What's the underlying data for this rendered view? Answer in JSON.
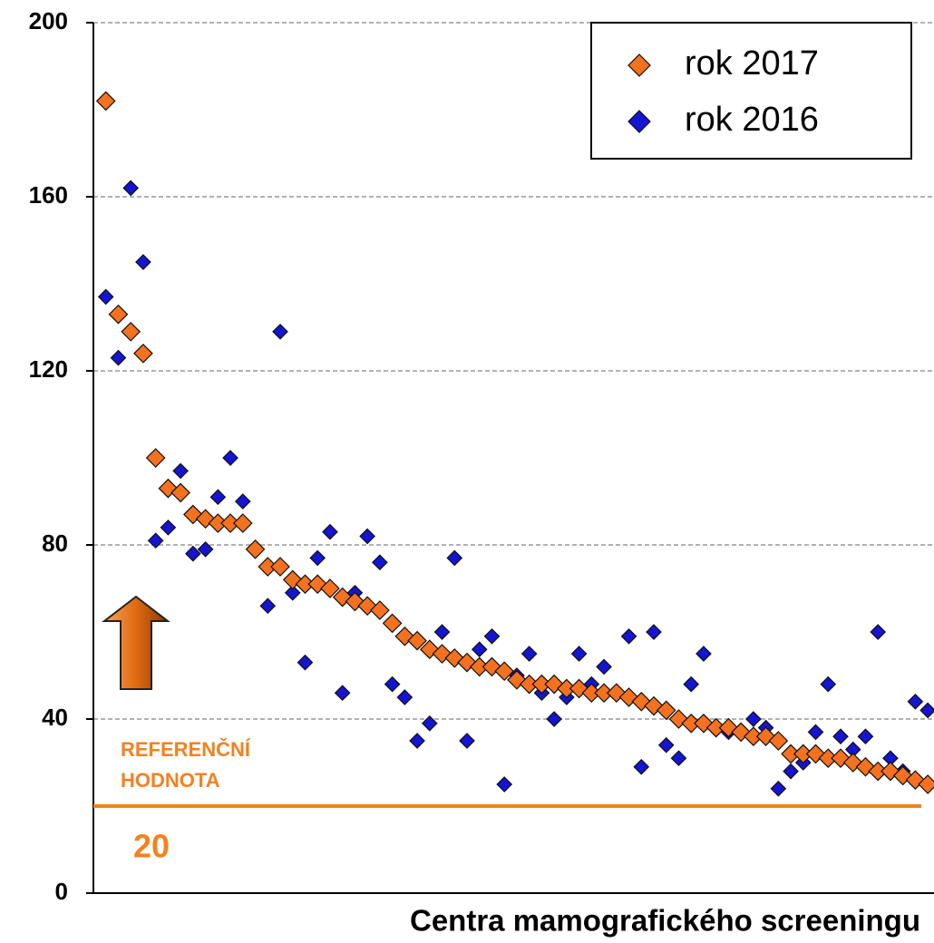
{
  "chart_data": {
    "type": "scatter",
    "xlabel": "Centra mamografického screeningu",
    "x": [
      1,
      2,
      3,
      4,
      5,
      6,
      7,
      8,
      9,
      10,
      11,
      12,
      13,
      14,
      15,
      16,
      17,
      18,
      19,
      20,
      21,
      22,
      23,
      24,
      25,
      26,
      27,
      28,
      29,
      30,
      31,
      32,
      33,
      34,
      35,
      36,
      37,
      38,
      39,
      40,
      41,
      42,
      43,
      44,
      45,
      46,
      47,
      48,
      49,
      50,
      51,
      52,
      53,
      54,
      55,
      56,
      57,
      58,
      59,
      60,
      61,
      62,
      63,
      64,
      65,
      66,
      67
    ],
    "xlim": [
      0,
      67.5
    ],
    "ylim": [
      0,
      200
    ],
    "yticks": [
      0,
      40,
      80,
      120,
      160,
      200
    ],
    "grid": true,
    "legend": "upper right",
    "series": [
      {
        "name": "rok 2017",
        "color": "#f4711f",
        "values": [
          182,
          133,
          129,
          124,
          100,
          93,
          92,
          87,
          86,
          85,
          85,
          85,
          79,
          75,
          75,
          72,
          71,
          71,
          70,
          68,
          67,
          66,
          65,
          62,
          59,
          58,
          56,
          55,
          54,
          53,
          52,
          52,
          51,
          49,
          48,
          48,
          48,
          47,
          47,
          46,
          46,
          46,
          45,
          44,
          43,
          42,
          40,
          39,
          39,
          38,
          38,
          37,
          36,
          36,
          35,
          32,
          32,
          32,
          31,
          31,
          30,
          29,
          28,
          28,
          27,
          26,
          25
        ]
      },
      {
        "name": "rok 2016",
        "color": "#1414d2",
        "values": [
          137,
          123,
          162,
          145,
          81,
          84,
          97,
          78,
          79,
          91,
          100,
          90,
          79,
          66,
          129,
          69,
          53,
          77,
          83,
          46,
          69,
          82,
          76,
          48,
          45,
          35,
          39,
          60,
          77,
          35,
          56,
          59,
          25,
          50,
          55,
          46,
          40,
          45,
          55,
          48,
          52,
          46,
          59,
          29,
          60,
          34,
          31,
          48,
          55,
          38,
          37,
          37,
          40,
          38,
          24,
          28,
          30,
          37,
          48,
          36,
          33,
          36,
          60,
          31,
          28,
          44,
          42
        ]
      }
    ],
    "reference_line": {
      "value": 20,
      "color": "#f4811f",
      "label": [
        "REFERENČNÍ",
        "HODNOTA"
      ]
    }
  }
}
